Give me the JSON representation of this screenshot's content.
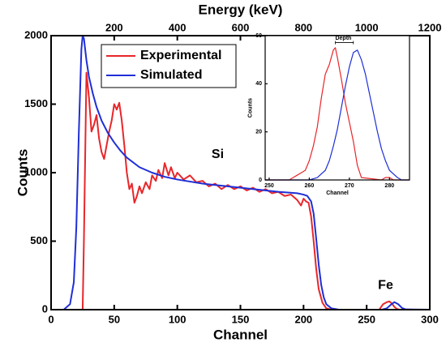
{
  "chart_data": [
    {
      "type": "line",
      "x_label": "Channel",
      "x2_label": "Energy (keV)",
      "y_label": "Counts",
      "xlim": [
        0,
        300
      ],
      "xticks": [
        0,
        50,
        100,
        150,
        200,
        250,
        300
      ],
      "x2lim": [
        0,
        1200
      ],
      "x2ticks": [
        200,
        400,
        600,
        800,
        1000,
        1200
      ],
      "ylim": [
        0,
        2000
      ],
      "yticks": [
        0,
        500,
        1000,
        1500,
        2000
      ],
      "legend": "upper left",
      "annotations": [
        {
          "text": "Si",
          "x": 132,
          "y": 1130
        },
        {
          "text": "Fe",
          "x": 265,
          "y": 175
        }
      ],
      "series": [
        {
          "name": "Experimental",
          "color": "#e8262a",
          "x": [
            0,
            25,
            26,
            28,
            30,
            32,
            34,
            36,
            38,
            40,
            42,
            44,
            46,
            48,
            50,
            52,
            54,
            56,
            58,
            60,
            62,
            64,
            66,
            68,
            70,
            72,
            75,
            78,
            80,
            83,
            85,
            88,
            90,
            93,
            95,
            98,
            100,
            105,
            110,
            115,
            120,
            125,
            130,
            135,
            140,
            145,
            150,
            155,
            160,
            165,
            170,
            175,
            180,
            185,
            190,
            195,
            198,
            200,
            202,
            204,
            206,
            208,
            210,
            212,
            215,
            218,
            222,
            260,
            263,
            266,
            268,
            270,
            272,
            274,
            276,
            300
          ],
          "values": [
            0,
            0,
            500,
            1730,
            1550,
            1300,
            1350,
            1420,
            1250,
            1150,
            1100,
            1200,
            1300,
            1380,
            1500,
            1460,
            1510,
            1380,
            1200,
            1000,
            880,
            920,
            780,
            830,
            900,
            850,
            930,
            880,
            980,
            940,
            1020,
            960,
            1070,
            980,
            1040,
            960,
            1000,
            950,
            980,
            930,
            940,
            900,
            920,
            880,
            910,
            880,
            900,
            870,
            890,
            860,
            880,
            850,
            860,
            830,
            840,
            800,
            760,
            810,
            790,
            780,
            680,
            500,
            300,
            150,
            50,
            10,
            0,
            0,
            40,
            55,
            60,
            45,
            20,
            5,
            0,
            0
          ]
        },
        {
          "name": "Simulated",
          "color": "#1f2fd6",
          "x": [
            0,
            10,
            15,
            18,
            20,
            22,
            24,
            25,
            26,
            28,
            30,
            33,
            36,
            40,
            45,
            50,
            55,
            60,
            70,
            80,
            90,
            100,
            120,
            140,
            160,
            180,
            195,
            200,
            203,
            206,
            208,
            210,
            212,
            214,
            216,
            218,
            222,
            228,
            262,
            266,
            269,
            272,
            275,
            278,
            281,
            300
          ],
          "values": [
            0,
            0,
            40,
            200,
            600,
            1300,
            1900,
            2000,
            1980,
            1820,
            1700,
            1580,
            1480,
            1380,
            1290,
            1220,
            1160,
            1110,
            1040,
            1000,
            970,
            950,
            920,
            900,
            880,
            860,
            850,
            840,
            830,
            790,
            700,
            520,
            330,
            180,
            90,
            40,
            10,
            0,
            0,
            10,
            35,
            55,
            40,
            12,
            2,
            0
          ]
        }
      ]
    },
    {
      "type": "line",
      "x_label": "Channel",
      "y_label": "Counts",
      "xlim": [
        249,
        285
      ],
      "xticks": [
        250,
        260,
        270,
        280
      ],
      "ylim": [
        0,
        60
      ],
      "yticks": [
        0,
        20,
        40,
        60
      ],
      "annotations": [
        {
          "text": "Depth",
          "x": 268.5,
          "y": 59,
          "x_range": [
            266.5,
            271
          ]
        }
      ],
      "series": [
        {
          "color": "#e8262a",
          "x": [
            249,
            255,
            256,
            257,
            258,
            259,
            260,
            261,
            262,
            263,
            264,
            265,
            266,
            266.5,
            267,
            268,
            269,
            270,
            271,
            272,
            273,
            278,
            279,
            280,
            281,
            285
          ],
          "values": [
            0,
            0,
            1,
            2,
            3,
            4,
            8,
            14,
            22,
            34,
            44,
            48,
            54,
            55,
            51,
            42,
            32,
            24,
            16,
            6,
            1,
            0,
            1,
            1,
            0,
            0
          ]
        },
        {
          "color": "#1f2fd6",
          "x": [
            249,
            260,
            262,
            264,
            265,
            266,
            267,
            268,
            269,
            270,
            271,
            272,
            273,
            274,
            275,
            276,
            277,
            278,
            279,
            280,
            282,
            283,
            285
          ],
          "values": [
            0,
            0,
            1,
            4,
            8,
            14,
            21,
            30,
            39,
            47,
            53,
            54,
            50,
            44,
            36,
            28,
            20,
            13,
            8,
            4,
            1,
            0,
            0
          ]
        }
      ]
    }
  ]
}
